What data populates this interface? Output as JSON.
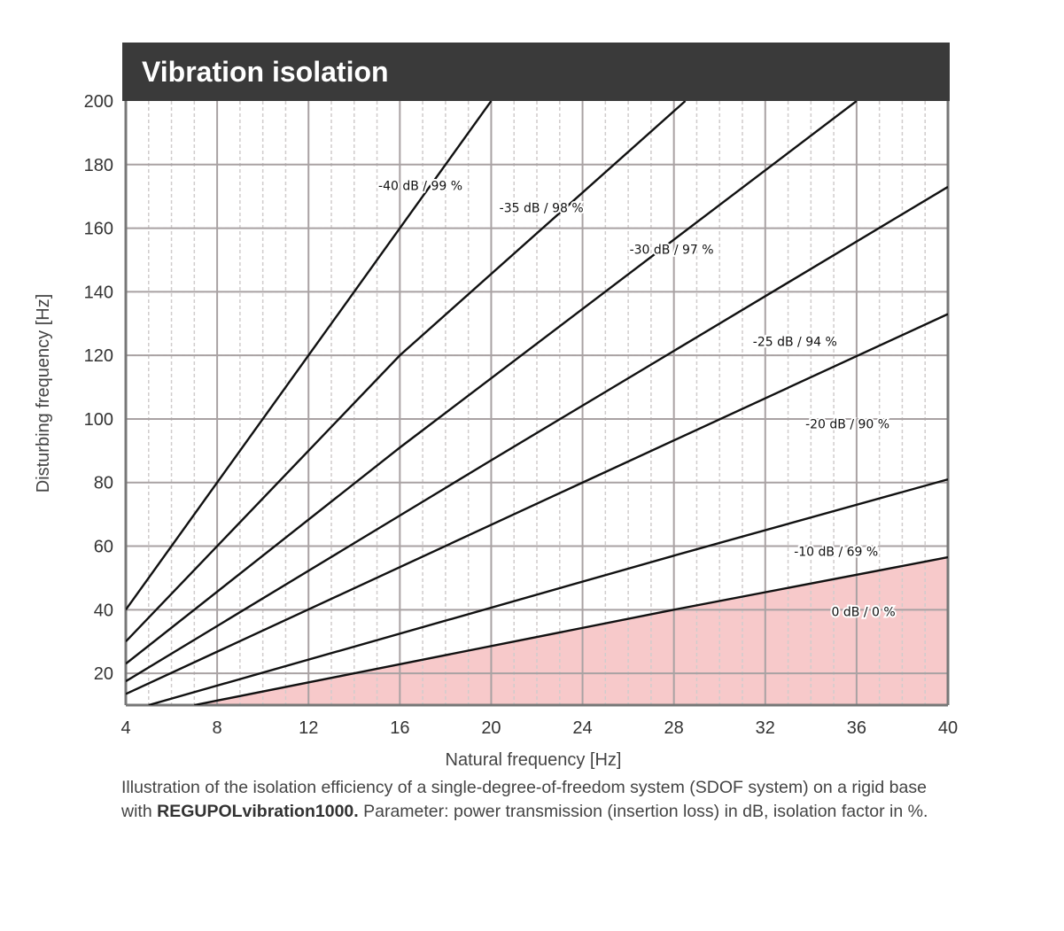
{
  "chart_data": {
    "type": "line",
    "title": "Vibration isolation",
    "xlabel": "Natural frequency [Hz]",
    "ylabel": "Disturbing frequency [Hz]",
    "xlim": [
      4,
      40
    ],
    "ylim": [
      10,
      200
    ],
    "x_ticks": [
      "4",
      "8",
      "12",
      "16",
      "20",
      "24",
      "28",
      "32",
      "36",
      "40"
    ],
    "y_ticks": [
      "20",
      "40",
      "60",
      "80",
      "100",
      "120",
      "140",
      "160",
      "180",
      "200"
    ],
    "grid": true,
    "series": [
      {
        "name": "-40 dB / 99 %",
        "x": [
          4,
          16,
          20
        ],
        "y": [
          40,
          160,
          200
        ]
      },
      {
        "name": "-35 dB / 98 %",
        "x": [
          4,
          16,
          28.5
        ],
        "y": [
          30,
          120,
          200
        ]
      },
      {
        "name": "-30 dB / 97 %",
        "x": [
          4,
          16,
          36
        ],
        "y": [
          23,
          91,
          200
        ]
      },
      {
        "name": "-25 dB / 94 %",
        "x": [
          4,
          20,
          40
        ],
        "y": [
          17.5,
          87,
          173
        ]
      },
      {
        "name": "-20 dB / 90 %",
        "x": [
          4,
          24,
          40
        ],
        "y": [
          13.5,
          80,
          133
        ]
      },
      {
        "name": "-10 dB / 69 %",
        "x": [
          5,
          28,
          40
        ],
        "y": [
          10,
          57,
          81
        ]
      },
      {
        "name": "0 dB / 0 %",
        "x": [
          7,
          28,
          40
        ],
        "y": [
          10,
          40,
          56.5
        ]
      }
    ],
    "shaded_region": {
      "below_series": "0 dB / 0 %",
      "color": "#f7c9ca"
    }
  },
  "caption": {
    "before": "Illustration of the isolation efficiency of a single-degree-of-freedom system (SDOF system) on a rigid base with ",
    "product": "REGUPOLvibration1000.",
    "after": " Parameter: power transmission (insertion loss) in dB, isolation factor in %."
  },
  "colors": {
    "title_bar": "#3a3a3a",
    "shade": "#f7c9ca",
    "curve": "#111111",
    "grid_major": "#a9a2a3",
    "grid_minor": "#d0cccc"
  }
}
